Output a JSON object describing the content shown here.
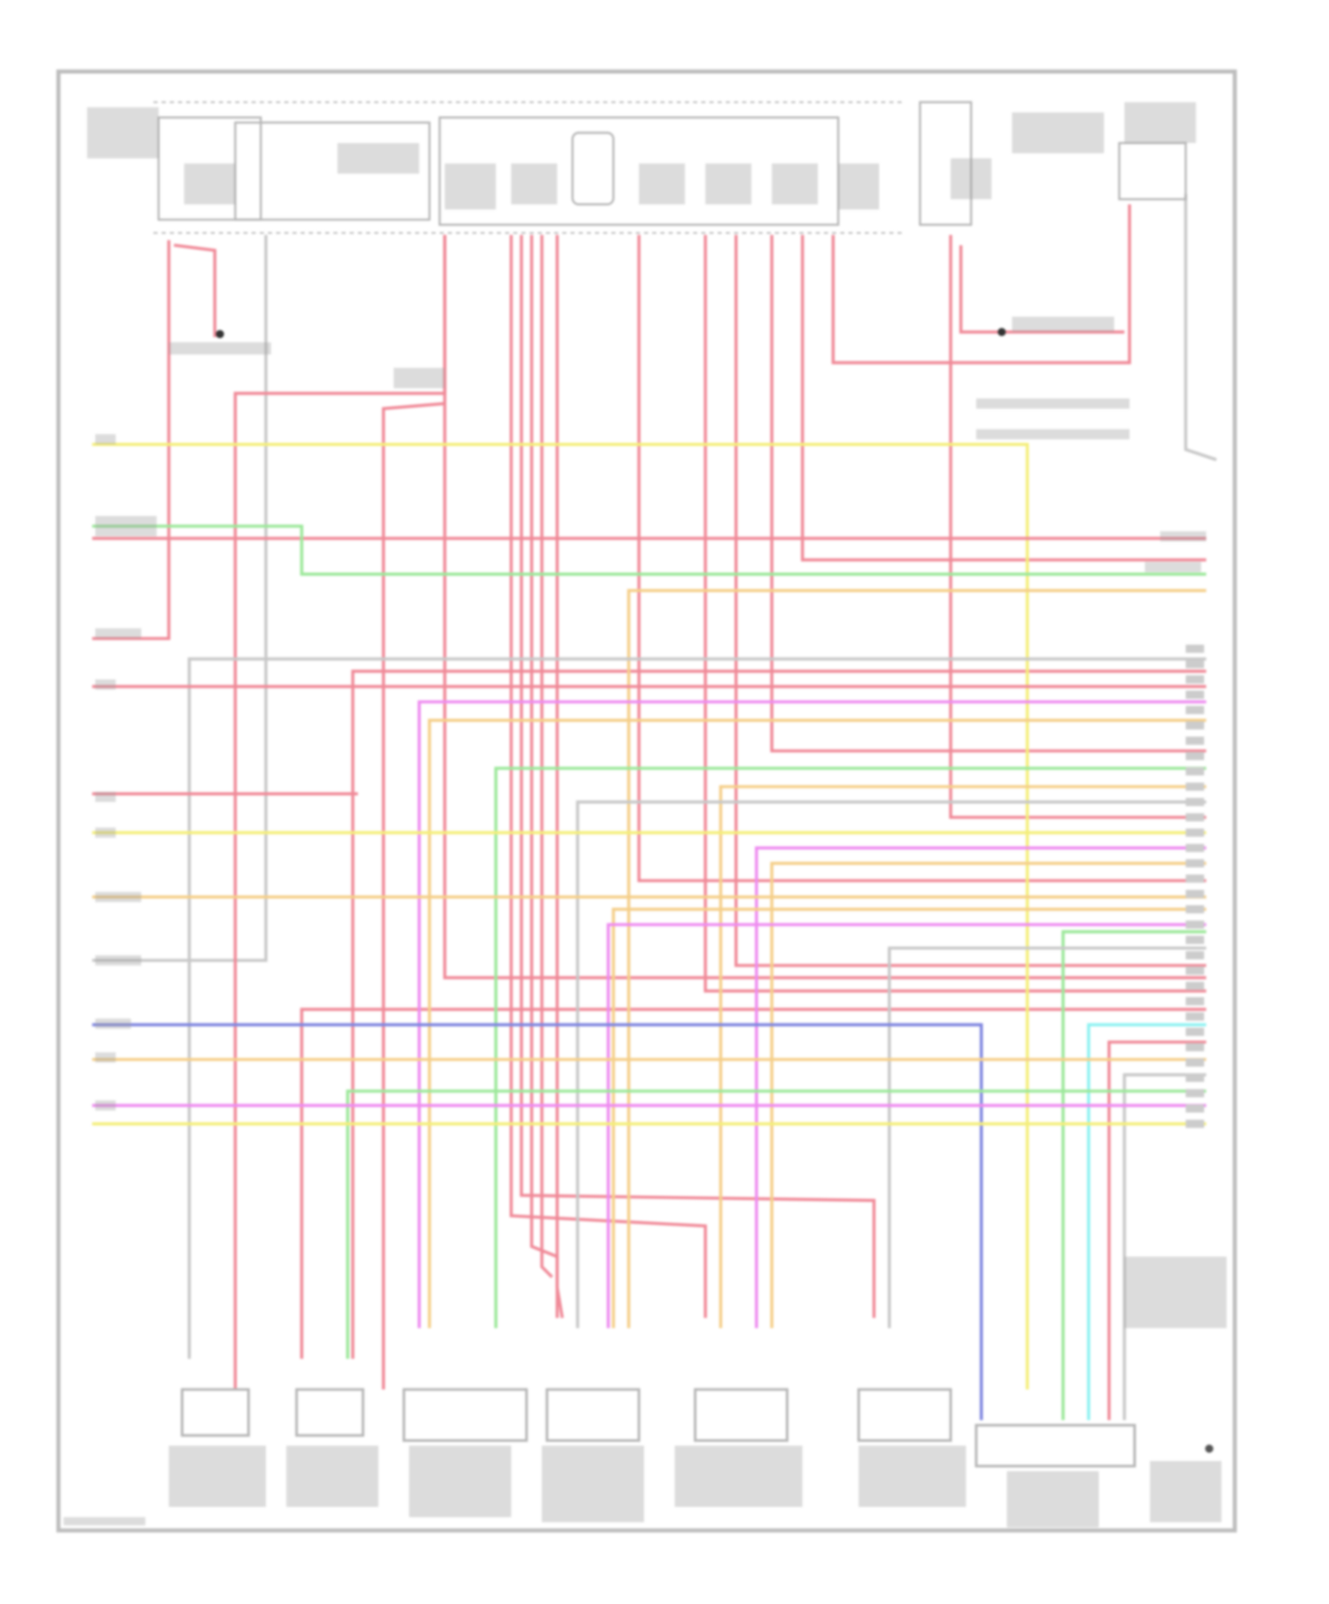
{
  "diagram": {
    "type": "wiring-diagram",
    "text_legible": false,
    "wire_colors": {
      "red": "#f08a98",
      "yellow": "#f4ee7a",
      "orange": "#f5cf8a",
      "green": "#9ce89a",
      "magenta": "#ee8cf0",
      "blue": "#7f86e0",
      "cyan": "#8ef2f2",
      "gray": "#c8c8c8"
    },
    "frame_color": "#bdbdbd",
    "component_color": "#b5b5b5",
    "label_color": "#9a9a9a"
  }
}
